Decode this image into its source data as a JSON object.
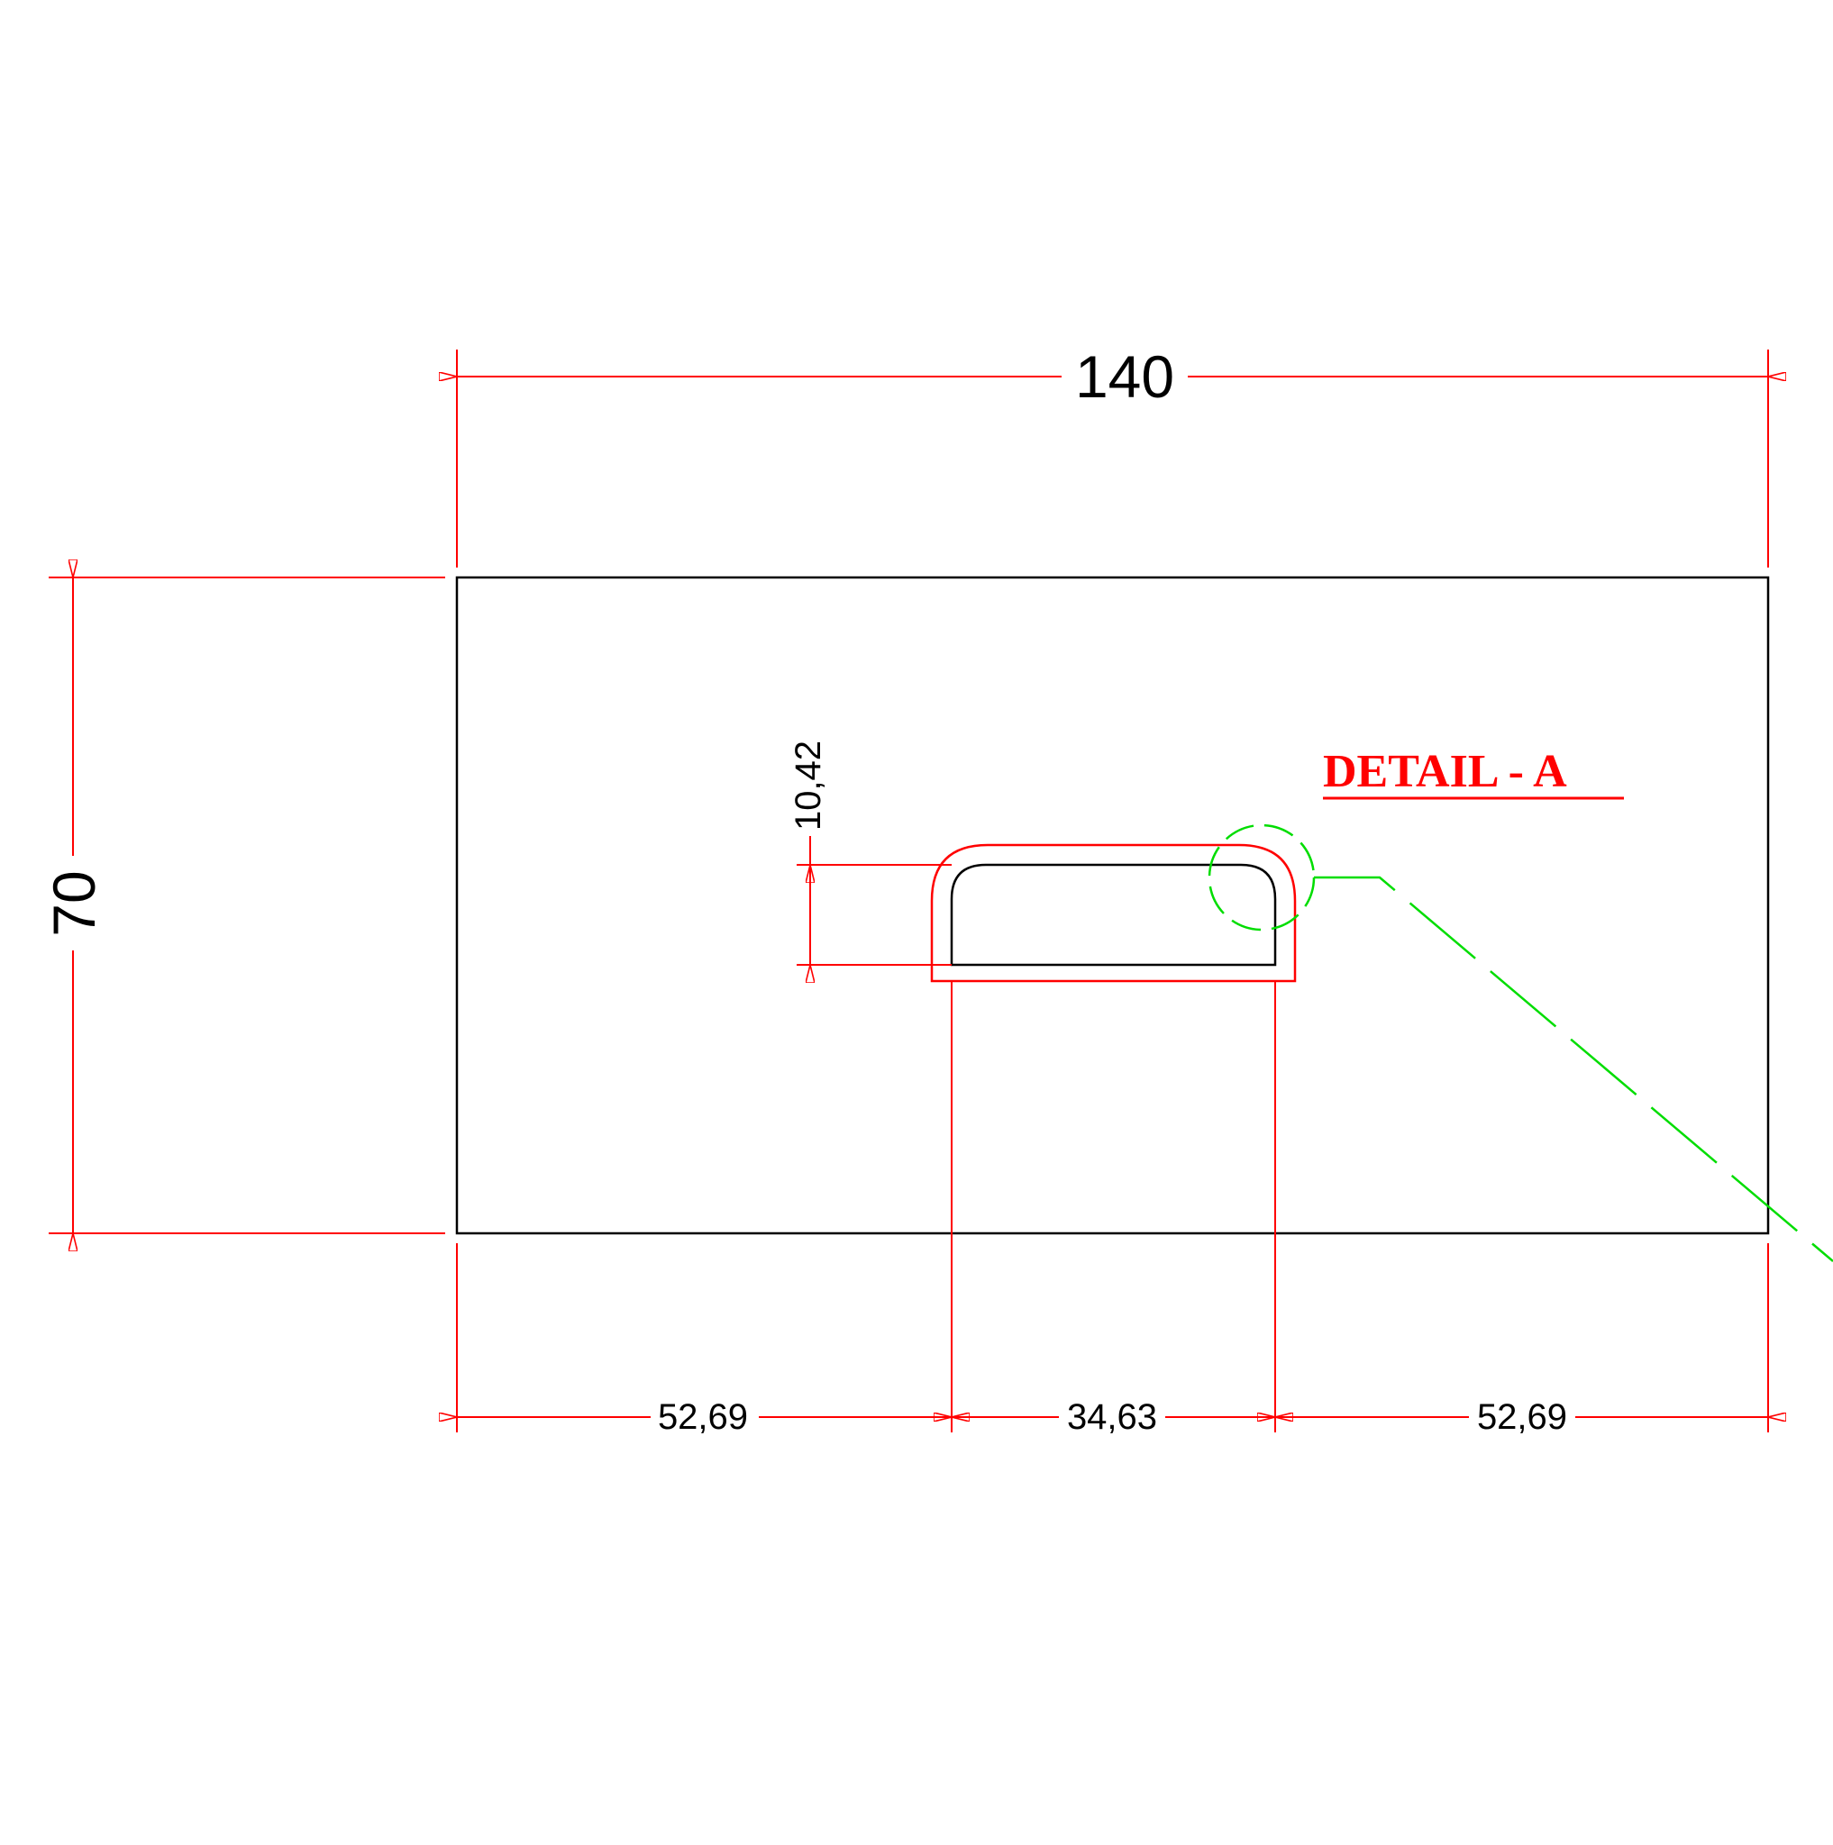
{
  "colors": {
    "background": "#ffffff",
    "outline": "#000000",
    "dimension": "#ff0000",
    "detail_marker": "#00dd00"
  },
  "dimensions": {
    "overall_width": "140",
    "overall_height": "70",
    "slot_height": "10,42",
    "left_offset": "52,69",
    "slot_width": "34,63",
    "right_offset": "52,69"
  },
  "detail": {
    "label": "DETAIL - A"
  }
}
